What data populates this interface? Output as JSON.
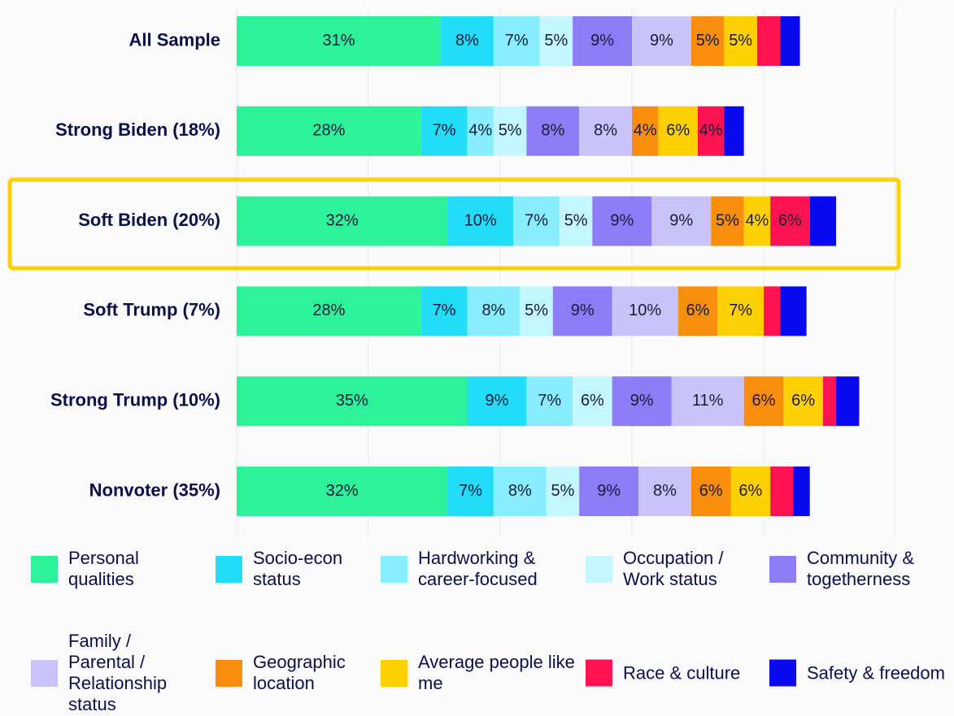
{
  "chart_data": {
    "type": "bar",
    "orientation": "horizontal",
    "stacked": true,
    "categories": [
      "All Sample",
      "Strong Biden (18%)",
      "Soft Biden (20%)",
      "Soft Trump (7%)",
      "Strong Trump (10%)",
      "Nonvoter (35%)"
    ],
    "xlim": [
      0,
      100
    ],
    "xticks": [
      0,
      20,
      40,
      60,
      80,
      100
    ],
    "grid": true,
    "series": [
      {
        "name": "Personal qualities",
        "color": "#2ef29a",
        "values": [
          31,
          28,
          32,
          28,
          35,
          32
        ],
        "value_labels": [
          "31%",
          "28%",
          "32%",
          "28%",
          "35%",
          "32%"
        ]
      },
      {
        "name": "Socio-econ status",
        "color": "#22ddf8",
        "values": [
          8,
          7,
          10,
          7,
          9,
          7
        ],
        "value_labels": [
          "8%",
          "7%",
          "10%",
          "7%",
          "9%",
          "7%"
        ]
      },
      {
        "name": "Hardworking & career-focused",
        "color": "#88eeff",
        "values": [
          7,
          4,
          7,
          8,
          7,
          8
        ],
        "value_labels": [
          "7%",
          "4%",
          "7%",
          "8%",
          "7%",
          "8%"
        ]
      },
      {
        "name": "Occupation / Work status",
        "color": "#c2f7ff",
        "values": [
          5,
          5,
          5,
          5,
          6,
          5
        ],
        "value_labels": [
          "5%",
          "5%",
          "5%",
          "5%",
          "6%",
          "5%"
        ]
      },
      {
        "name": "Community & togetherness",
        "color": "#8c7cf5",
        "values": [
          9,
          8,
          9,
          9,
          9,
          9
        ],
        "value_labels": [
          "9%",
          "8%",
          "9%",
          "9%",
          "9%",
          "9%"
        ]
      },
      {
        "name": "Family / Parental / Relationship status",
        "color": "#c9c3f9",
        "values": [
          9,
          8,
          9,
          10,
          11,
          8
        ],
        "value_labels": [
          "9%",
          "8%",
          "9%",
          "10%",
          "11%",
          "8%"
        ]
      },
      {
        "name": "Geographic location",
        "color": "#f98d0c",
        "values": [
          5,
          4,
          5,
          6,
          6,
          6
        ],
        "value_labels": [
          "5%",
          "4%",
          "5%",
          "6%",
          "6%",
          "6%"
        ]
      },
      {
        "name": "Average people like me",
        "color": "#ffd000",
        "values": [
          5,
          6,
          4,
          7,
          6,
          6
        ],
        "value_labels": [
          "5%",
          "6%",
          "4%",
          "7%",
          "6%",
          "6%"
        ]
      },
      {
        "name": "Race & culture",
        "color": "#ff1250",
        "values": [
          3.5,
          4,
          6,
          2.5,
          2,
          3.5
        ],
        "value_labels": [
          null,
          "4%",
          "6%",
          null,
          null,
          null
        ]
      },
      {
        "name": "Safety & freedom",
        "color": "#0a0af0",
        "values": [
          3,
          3,
          4,
          4,
          3.5,
          2.5
        ],
        "value_labels": [
          null,
          null,
          null,
          null,
          null,
          null
        ]
      }
    ]
  }
}
